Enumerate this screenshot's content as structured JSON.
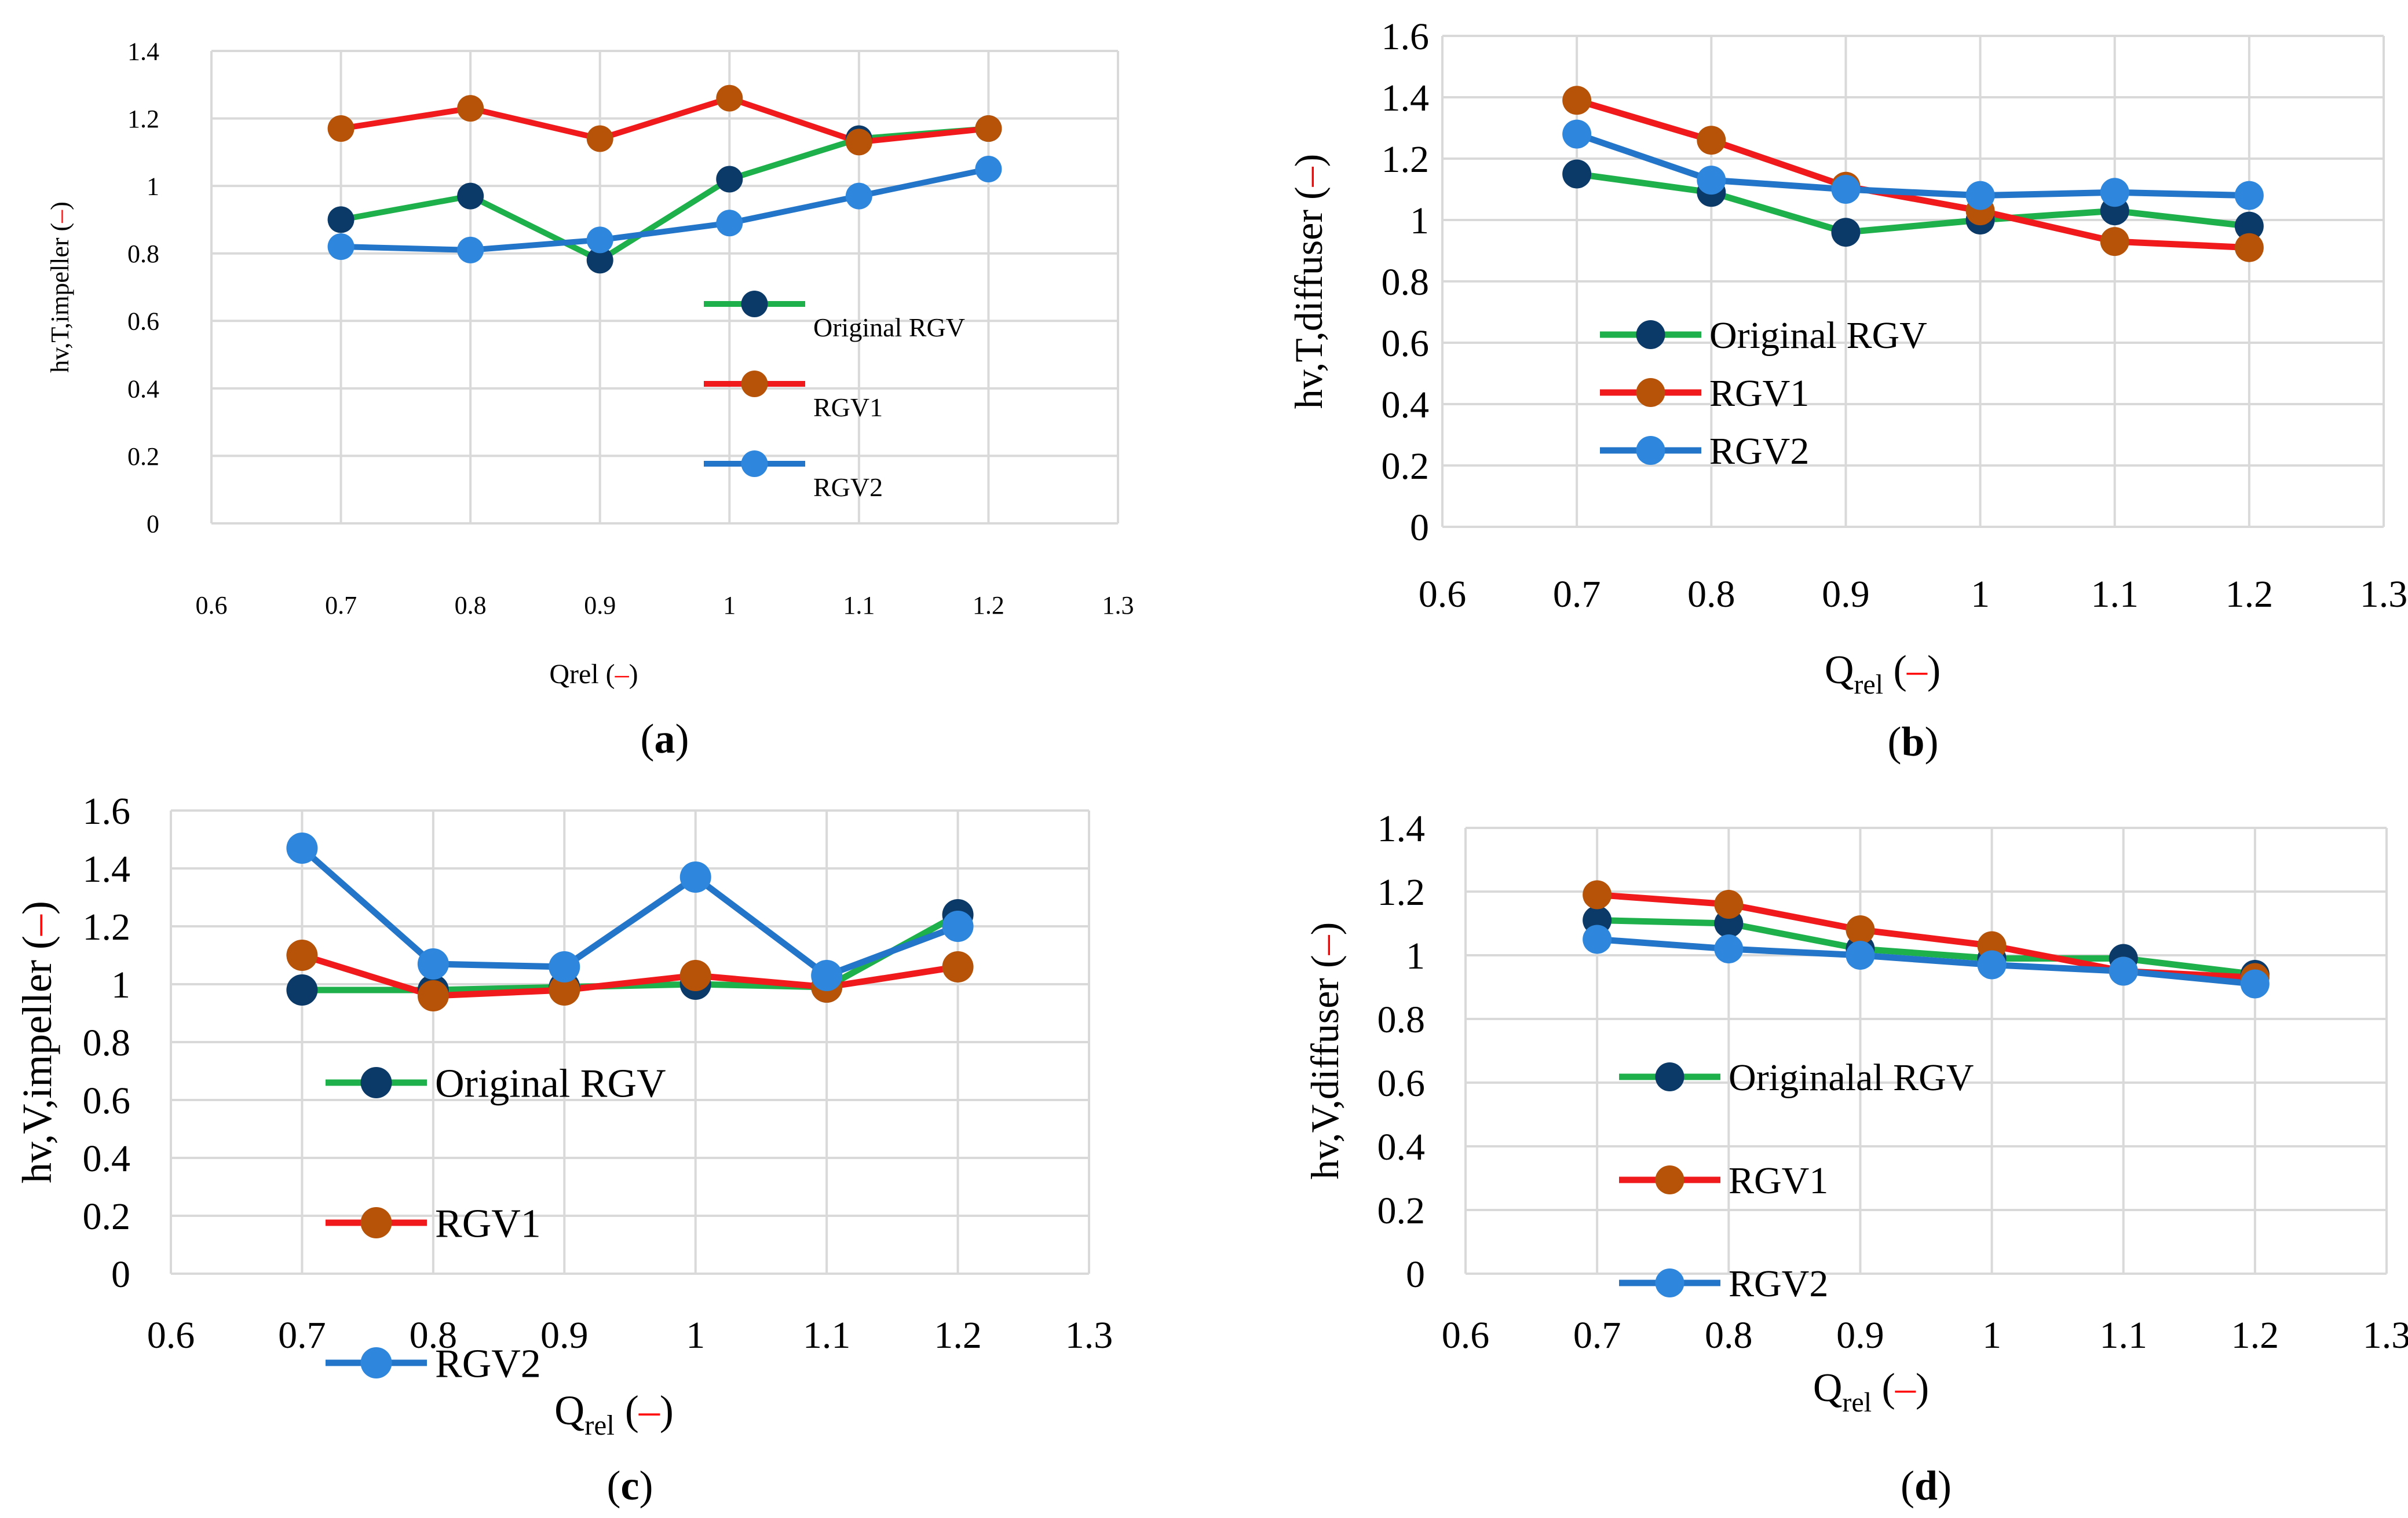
{
  "figure": {
    "panel_labels": [
      "(a)",
      "(b)",
      "(c)",
      "(d)"
    ],
    "unit_dash": "–",
    "colors": {
      "original": "#1db04b",
      "original_marker": "#0b3a68",
      "rgv1": "#f0191b",
      "rgv1_marker": "#b65309",
      "rgv2": "#2275c8",
      "rgv2_marker": "#2e87dc",
      "unit_dash": "#ff0000",
      "grid": "#d9d9d9"
    }
  },
  "chart_data": [
    {
      "id": "a",
      "type": "line",
      "panel_label": "(a)",
      "ylabel": "hv,T,impeller",
      "xlabel_main": "Qrel",
      "xlabel_sub": "",
      "x_ticks": [
        "0.6",
        "0.7",
        "0.8",
        "0.9",
        "1",
        "1.1",
        "1.2",
        "1.3"
      ],
      "y_ticks": [
        "0",
        "0.2",
        "0.4",
        "0.6",
        "0.8",
        "1",
        "1.2",
        "1.4"
      ],
      "xlim": [
        0.6,
        1.3
      ],
      "ylim": [
        0,
        1.4
      ],
      "x": [
        0.7,
        0.8,
        0.9,
        1.0,
        1.1,
        1.2
      ],
      "legend_position": "right-middle",
      "series": [
        {
          "name": "Original RGV",
          "key": "original",
          "values": [
            0.9,
            0.97,
            0.78,
            1.02,
            1.14,
            1.17
          ]
        },
        {
          "name": "RGV1",
          "key": "rgv1",
          "values": [
            1.17,
            1.23,
            1.14,
            1.26,
            1.13,
            1.17
          ]
        },
        {
          "name": "RGV2",
          "key": "rgv2",
          "values": [
            0.82,
            0.81,
            0.84,
            0.89,
            0.97,
            1.05
          ]
        }
      ]
    },
    {
      "id": "b",
      "type": "line",
      "panel_label": "(b)",
      "ylabel": "hv,T,diffuser",
      "xlabel_main": "Q",
      "xlabel_sub": "rel",
      "x_ticks": [
        "0.6",
        "0.7",
        "0.8",
        "0.9",
        "1",
        "1.1",
        "1.2",
        "1.3"
      ],
      "y_ticks": [
        "0",
        "0.2",
        "0.4",
        "0.6",
        "0.8",
        "1",
        "1.2",
        "1.4",
        "1.6"
      ],
      "xlim": [
        0.6,
        1.3
      ],
      "ylim": [
        0,
        1.6
      ],
      "x": [
        0.7,
        0.8,
        0.9,
        1.0,
        1.1,
        1.2
      ],
      "legend_position": "left-middle",
      "series": [
        {
          "name": "Original RGV",
          "key": "original",
          "values": [
            1.15,
            1.09,
            0.96,
            1.0,
            1.03,
            0.98
          ]
        },
        {
          "name": "RGV1",
          "key": "rgv1",
          "values": [
            1.39,
            1.26,
            1.11,
            1.03,
            0.93,
            0.91
          ]
        },
        {
          "name": "RGV2",
          "key": "rgv2",
          "values": [
            1.28,
            1.13,
            1.1,
            1.08,
            1.09,
            1.08
          ]
        }
      ]
    },
    {
      "id": "c",
      "type": "line",
      "panel_label": "(c)",
      "ylabel": "hv,V,impeller",
      "xlabel_main": "Q",
      "xlabel_sub": "rel",
      "x_ticks": [
        "0.6",
        "0.7",
        "0.8",
        "0.9",
        "1",
        "1.1",
        "1.2",
        "1.3"
      ],
      "y_ticks": [
        "0",
        "0.2",
        "0.4",
        "0.6",
        "0.8",
        "1",
        "1.2",
        "1.4",
        "1.6"
      ],
      "xlim": [
        0.6,
        1.3
      ],
      "ylim": [
        0,
        1.6
      ],
      "x": [
        0.7,
        0.8,
        0.9,
        1.0,
        1.1,
        1.2
      ],
      "legend_position": "left-bottom",
      "series": [
        {
          "name": "Original RGV",
          "key": "original",
          "values": [
            0.98,
            0.98,
            0.99,
            1.0,
            0.99,
            1.24
          ]
        },
        {
          "name": "RGV1",
          "key": "rgv1",
          "values": [
            1.1,
            0.96,
            0.98,
            1.03,
            0.99,
            1.06
          ]
        },
        {
          "name": "RGV2",
          "key": "rgv2",
          "values": [
            1.47,
            1.07,
            1.06,
            1.37,
            1.03,
            1.2
          ]
        }
      ]
    },
    {
      "id": "d",
      "type": "line",
      "panel_label": "(d)",
      "ylabel": "hv,V,diffuser",
      "xlabel_main": "Q",
      "xlabel_sub": "rel",
      "x_ticks": [
        "0.6",
        "0.7",
        "0.8",
        "0.9",
        "1",
        "1.1",
        "1.2",
        "1.3"
      ],
      "y_ticks": [
        "0",
        "0.2",
        "0.4",
        "0.6",
        "0.8",
        "1",
        "1.2",
        "1.4"
      ],
      "xlim": [
        0.6,
        1.3
      ],
      "ylim": [
        0,
        1.4
      ],
      "x": [
        0.7,
        0.8,
        0.9,
        1.0,
        1.1,
        1.2
      ],
      "legend_position": "left-bottom",
      "series": [
        {
          "name": "Originalal RGV",
          "key": "original",
          "values": [
            1.11,
            1.1,
            1.02,
            0.99,
            0.99,
            0.94
          ]
        },
        {
          "name": "RGV1",
          "key": "rgv1",
          "values": [
            1.19,
            1.16,
            1.08,
            1.03,
            0.95,
            0.93
          ]
        },
        {
          "name": "RGV2",
          "key": "rgv2",
          "values": [
            1.05,
            1.02,
            1.0,
            0.97,
            0.95,
            0.91
          ]
        }
      ]
    }
  ]
}
